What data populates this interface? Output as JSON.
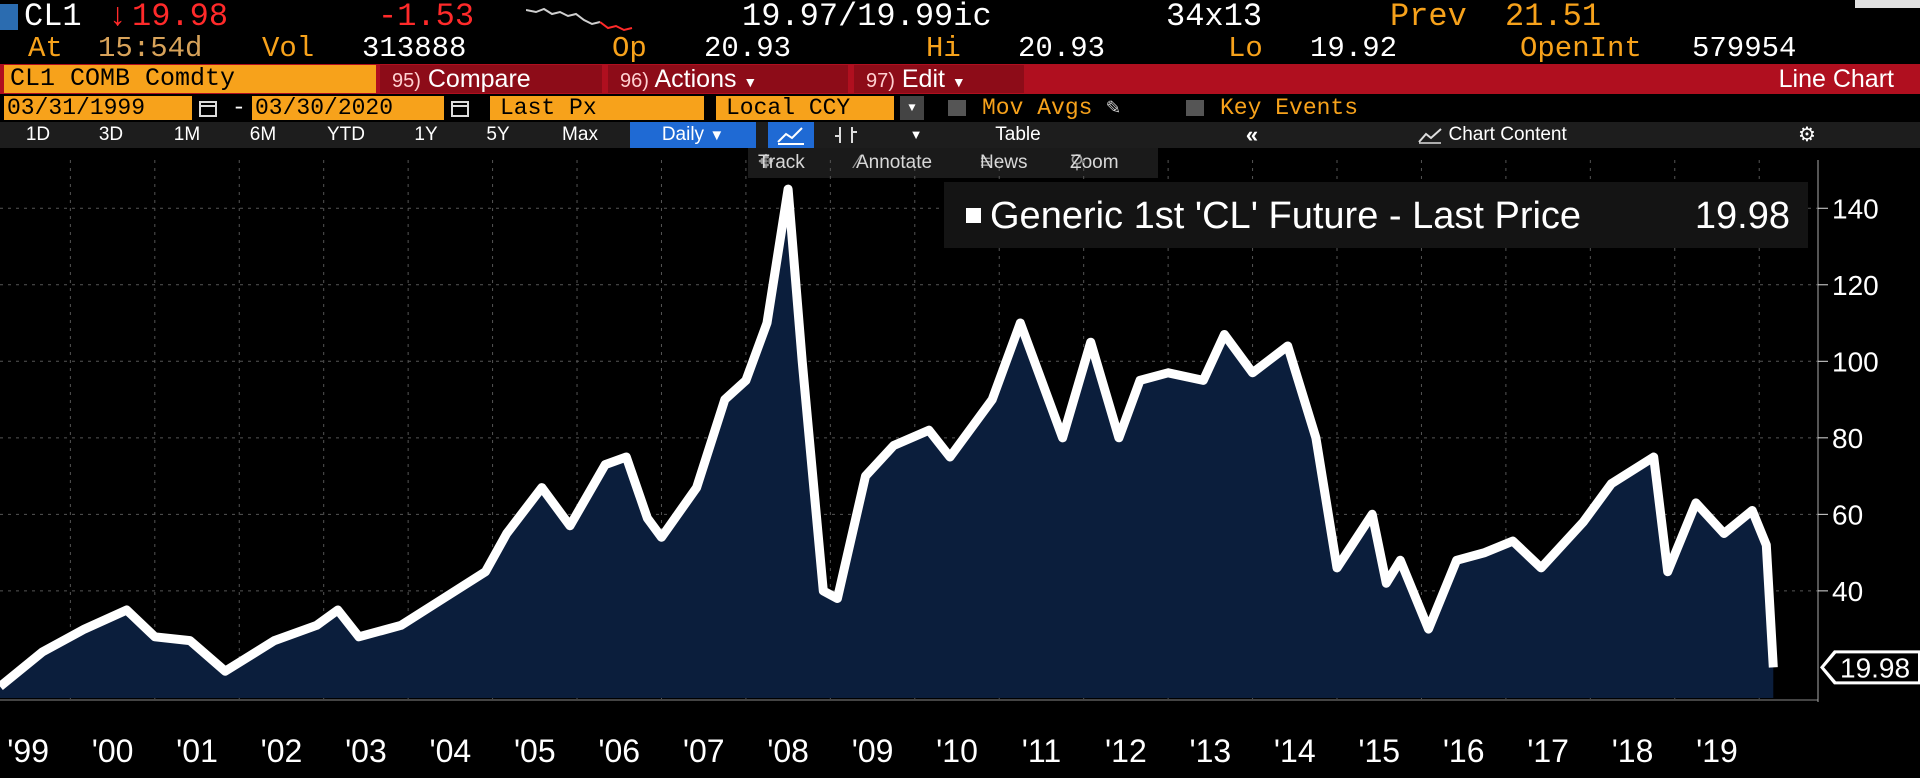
{
  "header": {
    "ticker": "CL1",
    "last_price": "19.98",
    "change": "-1.53",
    "bid_ask": "19.97/19.99",
    "bid_ask_suffix": "ic",
    "size": "34x13",
    "prev_label": "Prev",
    "prev_value": "21.51",
    "at_label": "At",
    "time": "15:54d",
    "vol_label": "Vol",
    "volume": "313888",
    "open_label": "Op",
    "open_value": "20.93",
    "hi_label": "Hi",
    "hi_value": "20.93",
    "lo_label": "Lo",
    "lo_value": "19.92",
    "openint_label": "OpenInt",
    "openint_value": "579954"
  },
  "commandbar": {
    "security": "CL1 COMB Comdty",
    "compare_num": "95)",
    "compare_label": "Compare",
    "actions_num": "96)",
    "actions_label": "Actions",
    "edit_num": "97)",
    "edit_label": "Edit",
    "view_title": "Line Chart"
  },
  "controls": {
    "start_date": "03/31/1999",
    "end_date": "03/30/2020",
    "field": "Last Px",
    "currency": "Local CCY",
    "mov_avgs": "Mov Avgs",
    "key_events": "Key Events"
  },
  "periods": [
    "1D",
    "3D",
    "1M",
    "6M",
    "YTD",
    "1Y",
    "5Y",
    "Max"
  ],
  "frequency": "Daily",
  "table_label": "Table",
  "chart_content_label": "Chart Content",
  "tools": {
    "track": "Track",
    "annotate": "Annotate",
    "news": "News",
    "zoom": "Zoom"
  },
  "colors": {
    "background": "#000000",
    "area_fill": "#0b1e3c",
    "line": "#ffffff",
    "orange": "#f7a21b",
    "red": "#ff2a2a",
    "command_bar": "#b00f1f",
    "daily_button": "#1f6ad4"
  },
  "chart_data": {
    "type": "area",
    "series": [
      {
        "name": "Generic 1st 'CL' Future - Last Price",
        "last_value_label": "19.98",
        "x": [
          "1999-03",
          "1999-09",
          "2000-03",
          "2000-09",
          "2001-01",
          "2001-06",
          "2001-11",
          "2002-06",
          "2002-12",
          "2003-03",
          "2003-06",
          "2003-12",
          "2004-06",
          "2004-12",
          "2005-03",
          "2005-08",
          "2005-12",
          "2006-05",
          "2006-08",
          "2006-11",
          "2007-01",
          "2007-06",
          "2007-10",
          "2008-01",
          "2008-04",
          "2008-07",
          "2008-09",
          "2008-12",
          "2009-02",
          "2009-06",
          "2009-10",
          "2010-03",
          "2010-06",
          "2010-12",
          "2011-04",
          "2011-10",
          "2012-02",
          "2012-06",
          "2012-09",
          "2013-01",
          "2013-06",
          "2013-09",
          "2014-01",
          "2014-06",
          "2014-10",
          "2015-01",
          "2015-06",
          "2015-08",
          "2015-10",
          "2016-02",
          "2016-06",
          "2016-10",
          "2017-02",
          "2017-06",
          "2017-12",
          "2018-04",
          "2018-10",
          "2018-12",
          "2019-04",
          "2019-08",
          "2019-12",
          "2020-02",
          "2020-03"
        ],
        "values": [
          15,
          24,
          30,
          35,
          28,
          27,
          19,
          27,
          31,
          35,
          28,
          31,
          38,
          45,
          55,
          67,
          57,
          73,
          75,
          59,
          54,
          67,
          90,
          95,
          110,
          145,
          100,
          40,
          38,
          70,
          78,
          82,
          75,
          90,
          110,
          80,
          105,
          80,
          95,
          97,
          95,
          107,
          97,
          104,
          80,
          46,
          60,
          42,
          48,
          30,
          48,
          50,
          53,
          46,
          58,
          68,
          75,
          45,
          63,
          55,
          61,
          52,
          20
        ]
      }
    ],
    "x_tick_labels": [
      "'99",
      "'00",
      "'01",
      "'02",
      "'03",
      "'04",
      "'05",
      "'06",
      "'07",
      "'08",
      "'09",
      "'10",
      "'11",
      "'12",
      "'13",
      "'14",
      "'15",
      "'16",
      "'17",
      "'18",
      "'19"
    ],
    "y_ticks": [
      40,
      60,
      80,
      100,
      120,
      140
    ],
    "ylim": [
      12,
      150
    ],
    "legend_label": "Generic 1st 'CL' Future - Last Price",
    "legend_value": "19.98",
    "legend_position": "top-right",
    "grid": true
  }
}
